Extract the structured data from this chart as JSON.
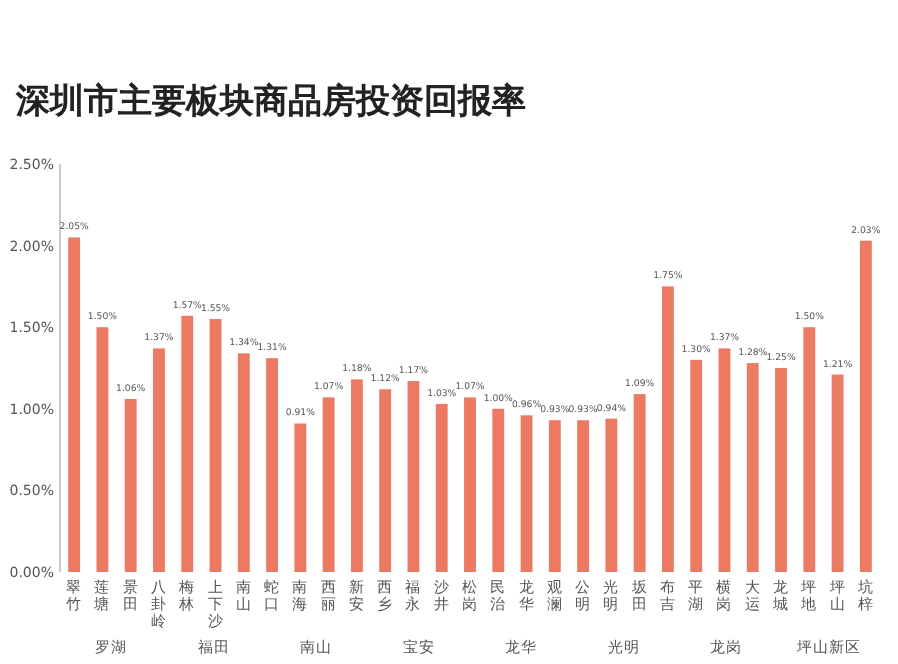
{
  "chart_data": {
    "type": "bar",
    "title": "深圳市主要板块商品房投资回报率",
    "categories": [
      "翠竹",
      "莲塘",
      "景田",
      "八卦岭",
      "梅林",
      "上下沙",
      "南山",
      "蛇口",
      "南海",
      "西丽",
      "新安",
      "西乡",
      "福永",
      "沙井",
      "松岗",
      "民治",
      "龙华",
      "观澜",
      "公明",
      "光明",
      "坂田",
      "布吉",
      "平湖",
      "横岗",
      "大运",
      "龙城",
      "坪地",
      "坪山",
      "坑梓"
    ],
    "values": [
      2.05,
      1.5,
      1.06,
      1.37,
      1.57,
      1.55,
      1.34,
      1.31,
      0.91,
      1.07,
      1.18,
      1.12,
      1.17,
      1.03,
      1.07,
      1.0,
      0.96,
      0.93,
      0.93,
      0.94,
      1.09,
      1.75,
      1.3,
      1.37,
      1.28,
      1.25,
      1.5,
      1.21,
      2.03
    ],
    "value_labels": [
      "2.05%",
      "1.50%",
      "1.06%",
      "1.37%",
      "1.57%",
      "1.55%",
      "1.34%",
      "1.31%",
      "0.91%",
      "1.07%",
      "1.18%",
      "1.12%",
      "1.17%",
      "1.03%",
      "1.07%",
      "1.00%",
      "0.96%",
      "0.93%",
      "0.93%",
      "0.94%",
      "1.09%",
      "1.75%",
      "1.30%",
      "1.37%",
      "1.28%",
      "1.25%",
      "1.50%",
      "1.21%",
      "2.03%"
    ],
    "color": "#ec7a63",
    "ylim": [
      0,
      2.5
    ],
    "yticks": [
      {
        "value": 0,
        "label": "0.00%"
      },
      {
        "value": 0.5,
        "label": "0.50%"
      },
      {
        "value": 1,
        "label": "1.00%"
      },
      {
        "value": 1.5,
        "label": "1.50%"
      },
      {
        "value": 2,
        "label": "2.00%"
      },
      {
        "value": 2.5,
        "label": "2.50%"
      }
    ],
    "annotations": [
      "罗湖",
      "福田",
      "南山",
      "宝安",
      "龙华",
      "光明",
      "龙岗",
      "坪山新区"
    ]
  }
}
